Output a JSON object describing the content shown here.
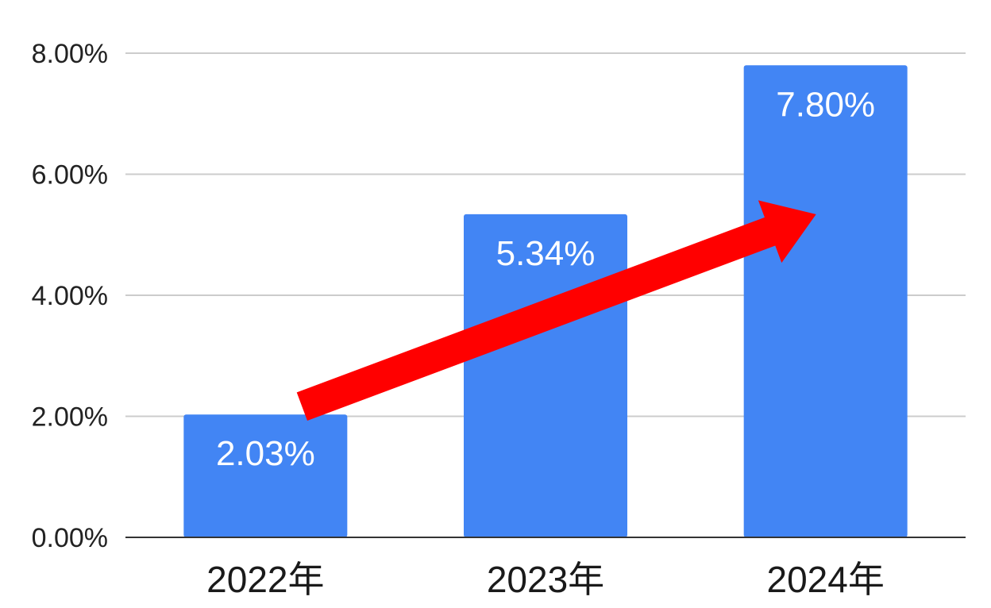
{
  "chart_data": {
    "type": "bar",
    "title": "",
    "xlabel": "",
    "ylabel": "",
    "categories": [
      "2022年",
      "2023年",
      "2024年"
    ],
    "values": [
      2.03,
      5.34,
      7.8
    ],
    "data_labels": [
      "2.03%",
      "5.34%",
      "7.80%"
    ],
    "ylim": [
      0,
      8
    ],
    "yticks": [
      0,
      2,
      4,
      6,
      8
    ],
    "ytick_labels": [
      "0.00%",
      "2.00%",
      "4.00%",
      "6.00%",
      "8.00%"
    ],
    "grid": true,
    "legend": "none",
    "bar_color": "#4285f4",
    "annotation": {
      "type": "arrow",
      "color": "#ff0000",
      "meaning": "upward-trend",
      "from": {
        "category": "2022年",
        "value": 2.03
      },
      "to": {
        "category": "2024年",
        "value": 5.6
      }
    }
  }
}
